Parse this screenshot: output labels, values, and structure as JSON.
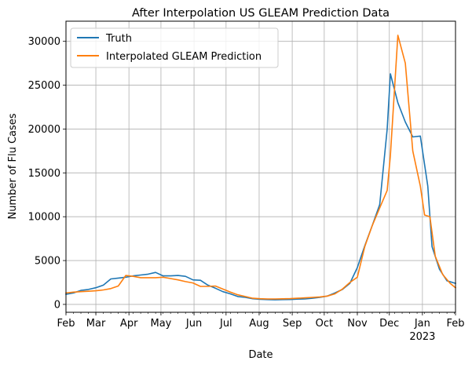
{
  "chart_data": {
    "type": "line",
    "title": "After Interpolation US GLEAM Prediction Data",
    "xlabel": "Date",
    "ylabel": "Number of Flu Cases",
    "xlim": [
      "2022-02-01",
      "2023-02-01"
    ],
    "ylim": [
      -900,
      32300
    ],
    "grid": true,
    "legend_position": "top-left",
    "x_ticks": [
      {
        "date": "2022-02-01",
        "label": "Feb",
        "sublabel": ""
      },
      {
        "date": "2022-03-01",
        "label": "Mar",
        "sublabel": ""
      },
      {
        "date": "2022-04-01",
        "label": "Apr",
        "sublabel": ""
      },
      {
        "date": "2022-05-01",
        "label": "May",
        "sublabel": ""
      },
      {
        "date": "2022-06-01",
        "label": "Jun",
        "sublabel": ""
      },
      {
        "date": "2022-07-01",
        "label": "Jul",
        "sublabel": ""
      },
      {
        "date": "2022-08-01",
        "label": "Aug",
        "sublabel": ""
      },
      {
        "date": "2022-09-01",
        "label": "Sep",
        "sublabel": ""
      },
      {
        "date": "2022-10-01",
        "label": "Oct",
        "sublabel": ""
      },
      {
        "date": "2022-11-01",
        "label": "Nov",
        "sublabel": ""
      },
      {
        "date": "2022-12-01",
        "label": "Dec",
        "sublabel": ""
      },
      {
        "date": "2023-01-01",
        "label": "Jan",
        "sublabel": "2023"
      },
      {
        "date": "2023-02-01",
        "label": "Feb",
        "sublabel": ""
      }
    ],
    "y_ticks": [
      0,
      5000,
      10000,
      15000,
      20000,
      25000,
      30000
    ],
    "series": [
      {
        "name": "Truth",
        "color": "#1f77b4",
        "points": [
          [
            "2022-02-01",
            1150
          ],
          [
            "2022-02-08",
            1300
          ],
          [
            "2022-02-15",
            1600
          ],
          [
            "2022-02-22",
            1700
          ],
          [
            "2022-03-01",
            1900
          ],
          [
            "2022-03-08",
            2200
          ],
          [
            "2022-03-15",
            2900
          ],
          [
            "2022-03-22",
            3000
          ],
          [
            "2022-03-29",
            3100
          ],
          [
            "2022-04-05",
            3250
          ],
          [
            "2022-04-12",
            3350
          ],
          [
            "2022-04-19",
            3450
          ],
          [
            "2022-04-26",
            3650
          ],
          [
            "2022-05-03",
            3250
          ],
          [
            "2022-05-10",
            3250
          ],
          [
            "2022-05-17",
            3300
          ],
          [
            "2022-05-24",
            3200
          ],
          [
            "2022-05-31",
            2800
          ],
          [
            "2022-06-07",
            2750
          ],
          [
            "2022-06-14",
            2200
          ],
          [
            "2022-06-21",
            1850
          ],
          [
            "2022-06-28",
            1450
          ],
          [
            "2022-07-05",
            1200
          ],
          [
            "2022-07-12",
            900
          ],
          [
            "2022-07-19",
            800
          ],
          [
            "2022-07-26",
            650
          ],
          [
            "2022-08-02",
            580
          ],
          [
            "2022-08-09",
            550
          ],
          [
            "2022-08-16",
            520
          ],
          [
            "2022-08-23",
            550
          ],
          [
            "2022-08-30",
            560
          ],
          [
            "2022-09-06",
            600
          ],
          [
            "2022-09-13",
            620
          ],
          [
            "2022-09-20",
            700
          ],
          [
            "2022-09-27",
            800
          ],
          [
            "2022-10-04",
            950
          ],
          [
            "2022-10-11",
            1300
          ],
          [
            "2022-10-18",
            1700
          ],
          [
            "2022-10-25",
            2400
          ],
          [
            "2022-11-01",
            4200
          ],
          [
            "2022-11-08",
            6700
          ],
          [
            "2022-11-15",
            9000
          ],
          [
            "2022-11-22",
            11400
          ],
          [
            "2022-11-29",
            20000
          ],
          [
            "2022-12-02",
            26300
          ],
          [
            "2022-12-09",
            23000
          ],
          [
            "2022-12-16",
            20800
          ],
          [
            "2022-12-23",
            19100
          ],
          [
            "2022-12-30",
            19200
          ],
          [
            "2023-01-06",
            13500
          ],
          [
            "2023-01-10",
            6600
          ],
          [
            "2023-01-17",
            4000
          ],
          [
            "2023-01-24",
            2700
          ],
          [
            "2023-02-01",
            2400
          ]
        ]
      },
      {
        "name": "Interpolated GLEAM Prediction",
        "color": "#ff7f0e",
        "points": [
          [
            "2022-02-01",
            1300
          ],
          [
            "2022-02-08",
            1400
          ],
          [
            "2022-02-15",
            1450
          ],
          [
            "2022-02-22",
            1500
          ],
          [
            "2022-03-01",
            1550
          ],
          [
            "2022-03-08",
            1650
          ],
          [
            "2022-03-15",
            1800
          ],
          [
            "2022-03-22",
            2100
          ],
          [
            "2022-03-29",
            3300
          ],
          [
            "2022-04-05",
            3200
          ],
          [
            "2022-04-12",
            3050
          ],
          [
            "2022-04-19",
            3050
          ],
          [
            "2022-04-26",
            3050
          ],
          [
            "2022-05-03",
            3100
          ],
          [
            "2022-05-10",
            2950
          ],
          [
            "2022-05-17",
            2800
          ],
          [
            "2022-05-24",
            2600
          ],
          [
            "2022-05-31",
            2450
          ],
          [
            "2022-06-07",
            2050
          ],
          [
            "2022-06-14",
            2050
          ],
          [
            "2022-06-21",
            2100
          ],
          [
            "2022-06-28",
            1750
          ],
          [
            "2022-07-05",
            1400
          ],
          [
            "2022-07-12",
            1100
          ],
          [
            "2022-07-19",
            900
          ],
          [
            "2022-07-26",
            700
          ],
          [
            "2022-08-02",
            650
          ],
          [
            "2022-08-09",
            620
          ],
          [
            "2022-08-16",
            620
          ],
          [
            "2022-08-23",
            640
          ],
          [
            "2022-08-30",
            660
          ],
          [
            "2022-09-06",
            700
          ],
          [
            "2022-09-13",
            750
          ],
          [
            "2022-09-20",
            800
          ],
          [
            "2022-09-27",
            850
          ],
          [
            "2022-10-04",
            950
          ],
          [
            "2022-10-11",
            1200
          ],
          [
            "2022-10-18",
            1750
          ],
          [
            "2022-10-25",
            2500
          ],
          [
            "2022-11-01",
            3100
          ],
          [
            "2022-11-08",
            6600
          ],
          [
            "2022-11-15",
            9000
          ],
          [
            "2022-11-22",
            11000
          ],
          [
            "2022-11-29",
            13000
          ],
          [
            "2022-12-02",
            17000
          ],
          [
            "2022-12-09",
            30700
          ],
          [
            "2022-12-16",
            27500
          ],
          [
            "2022-12-23",
            17500
          ],
          [
            "2022-12-30",
            13500
          ],
          [
            "2023-01-03",
            10200
          ],
          [
            "2023-01-08",
            10000
          ],
          [
            "2023-01-13",
            5500
          ],
          [
            "2023-01-20",
            3400
          ],
          [
            "2023-01-27",
            2400
          ],
          [
            "2023-02-01",
            1900
          ]
        ]
      }
    ]
  }
}
